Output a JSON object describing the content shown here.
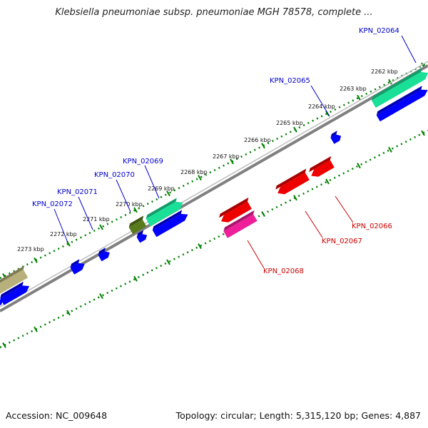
{
  "title": "Klebsiella pneumoniae subsp. pneumoniae MGH 78578, complete ...",
  "accession_text": "Accession: NC_009648",
  "summary_text": "Topology: circular; Length: 5,315,120 bp; Genes: 4,887",
  "colors": {
    "backbone": "#808080",
    "tick_ring": "#008000",
    "label_top": "#0000cc",
    "label_bottom": "#cc0000",
    "gene_blue": "#0000ff",
    "gene_green": "#1adf96",
    "gene_olive": "#5a7a1e",
    "gene_khaki": "#b8b07a",
    "gene_red": "#ee0000",
    "gene_pink": "#ee1f99"
  },
  "scale": {
    "unit": "kbp",
    "tick_labels": [
      "2262 kbp",
      "2263 kbp",
      "2264 kbp",
      "2265 kbp",
      "2266 kbp",
      "2267 kbp",
      "2268 kbp",
      "2269 kbp",
      "2270 kbp",
      "2271 kbp",
      "2272 kbp",
      "2273 kbp"
    ]
  },
  "gene_labels_top": [
    "KPN_02064",
    "KPN_02065",
    "KPN_02069",
    "KPN_02070",
    "KPN_02071",
    "KPN_02072"
  ],
  "gene_labels_bottom": [
    "KPN_02066",
    "KPN_02067",
    "KPN_02068"
  ]
}
